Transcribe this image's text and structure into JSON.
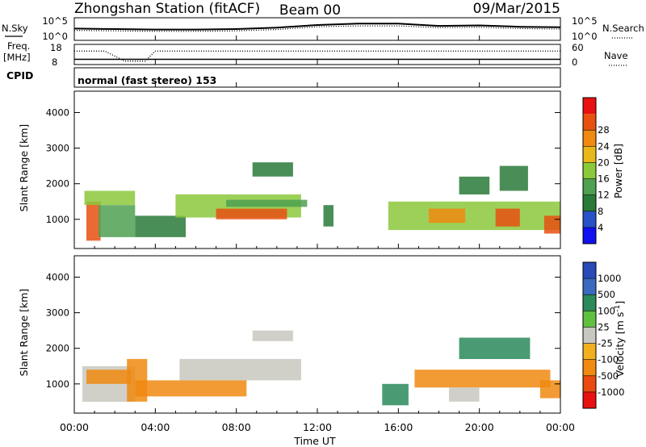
{
  "header": {
    "station": "Zhongshan Station (fitACF)",
    "beam": "Beam 00",
    "date": "09/Mar/2015"
  },
  "top_panels": {
    "nsky_label": "N.Sky",
    "nsearch_label": "N.Search",
    "left_hi": "10^5",
    "left_lo": "10^0",
    "right_hi": "10^5",
    "right_lo": "10^0",
    "freq_label": "Freq.",
    "freq_unit": "[MHz]",
    "freq_hi": "18",
    "freq_lo": "8",
    "nave_hi": "60",
    "nave_lo": "0",
    "nave_label": "Nave",
    "cpid_label": "CPID",
    "cpid_text": "normal (fast stereo) 153"
  },
  "x_axis": {
    "label": "Time UT",
    "ticks": [
      "00:00",
      "04:00",
      "08:00",
      "12:00",
      "16:00",
      "20:00",
      "00:00"
    ]
  },
  "colors": {
    "power": [
      "#1010f0",
      "#2a52c8",
      "#2a7a3a",
      "#4fa050",
      "#8cc83c",
      "#e8b818",
      "#f08a10",
      "#e85010",
      "#e81010"
    ],
    "velocity": [
      "#e81010",
      "#ea4a10",
      "#f08a10",
      "#f0b020",
      "#c8c8c0",
      "#60c040",
      "#2a8a5a",
      "#3a6ac0",
      "#2a4ab8"
    ]
  },
  "chart_data": [
    {
      "type": "line",
      "title": "N.Sky / N.Search",
      "x_hours": [
        0,
        2,
        4,
        6,
        8,
        10,
        12,
        14,
        16,
        18,
        20,
        22,
        24
      ],
      "series": [
        {
          "name": "N.Sky",
          "values_log10": [
            2.6,
            2.5,
            2.4,
            2.4,
            2.5,
            2.8,
            3.4,
            3.7,
            3.7,
            3.2,
            3.3,
            3.0,
            2.9
          ]
        },
        {
          "name": "N.Search",
          "values_log10": [
            2.2,
            2.1,
            2.0,
            2.0,
            2.1,
            2.4,
            3.0,
            3.2,
            3.2,
            2.8,
            2.9,
            2.6,
            2.5
          ]
        }
      ],
      "ylim_log10": [
        0,
        5
      ]
    },
    {
      "type": "line",
      "title": "Freq. / Nave",
      "x_hours": [
        0,
        1.5,
        2.5,
        3.5,
        4.0,
        24
      ],
      "freq_mhz": [
        10.6,
        10.6,
        10.6,
        10.6,
        10.6,
        10.6
      ],
      "nave": [
        40,
        40,
        10,
        10,
        40,
        40
      ],
      "freq_ylim": [
        8,
        18
      ],
      "nave_ylim": [
        0,
        60
      ]
    },
    {
      "type": "heatmap",
      "title": "Power [dB]",
      "xlabel": "Time UT",
      "ylabel": "Slant Range [km]",
      "xlim_hours": [
        0,
        24
      ],
      "ylim_km": [
        180,
        4600
      ],
      "yticks": [
        1000,
        2000,
        3000,
        4000
      ],
      "colorbar_label": "Power [dB]",
      "colorbar_ticks": [
        "4",
        "8",
        "12",
        "16",
        "20",
        "24",
        "28"
      ],
      "colorbar_range": [
        0,
        30
      ],
      "regions": [
        {
          "t0": 0.6,
          "t1": 1.3,
          "r0": 400,
          "r1": 1500,
          "v": 24
        },
        {
          "t0": 0.5,
          "t1": 3.0,
          "r0": 1400,
          "r1": 1800,
          "v": 16
        },
        {
          "t0": 1.2,
          "t1": 3.0,
          "r0": 500,
          "r1": 1400,
          "v": 12
        },
        {
          "t0": 3.0,
          "t1": 5.5,
          "r0": 500,
          "r1": 1100,
          "v": 8
        },
        {
          "t0": 5.0,
          "t1": 11.2,
          "r0": 1050,
          "r1": 1700,
          "v": 14
        },
        {
          "t0": 7.0,
          "t1": 10.5,
          "r0": 1000,
          "r1": 1300,
          "v": 26
        },
        {
          "t0": 7.5,
          "t1": 11.5,
          "r0": 1350,
          "r1": 1550,
          "v": 10
        },
        {
          "t0": 8.8,
          "t1": 10.8,
          "r0": 2200,
          "r1": 2600,
          "v": 8
        },
        {
          "t0": 12.3,
          "t1": 12.8,
          "r0": 800,
          "r1": 1400,
          "v": 8
        },
        {
          "t0": 15.5,
          "t1": 24.0,
          "r0": 700,
          "r1": 1500,
          "v": 14
        },
        {
          "t0": 17.5,
          "t1": 19.3,
          "r0": 900,
          "r1": 1300,
          "v": 22
        },
        {
          "t0": 20.8,
          "t1": 22.0,
          "r0": 800,
          "r1": 1300,
          "v": 26
        },
        {
          "t0": 19.0,
          "t1": 20.5,
          "r0": 1700,
          "r1": 2200,
          "v": 8
        },
        {
          "t0": 21.0,
          "t1": 22.4,
          "r0": 1800,
          "r1": 2500,
          "v": 8
        },
        {
          "t0": 23.2,
          "t1": 24.0,
          "r0": 600,
          "r1": 1100,
          "v": 24
        }
      ]
    },
    {
      "type": "heatmap",
      "title": "Velocity [m s-1]",
      "xlabel": "Time UT",
      "ylabel": "Slant Range [km]",
      "xlim_hours": [
        0,
        24
      ],
      "ylim_km": [
        180,
        4600
      ],
      "yticks": [
        1000,
        2000,
        3000,
        4000
      ],
      "colorbar_label": "Velocity [m s",
      "colorbar_label_sup": "-1",
      "colorbar_label_close": "]",
      "colorbar_ticks": [
        "-1000",
        "-500",
        "-100",
        "-25",
        "25",
        "100",
        "500",
        "1000"
      ],
      "colorbar_range": [
        -1250,
        1250
      ],
      "regions": [
        {
          "t0": 0.4,
          "t1": 3.0,
          "r0": 500,
          "r1": 1500,
          "v": 0
        },
        {
          "t0": 0.6,
          "t1": 2.8,
          "r0": 1000,
          "r1": 1400,
          "v": -300
        },
        {
          "t0": 2.6,
          "t1": 3.6,
          "r0": 500,
          "r1": 1700,
          "v": -200
        },
        {
          "t0": 5.2,
          "t1": 11.2,
          "r0": 1100,
          "r1": 1700,
          "v": 0
        },
        {
          "t0": 3.0,
          "t1": 8.5,
          "r0": 650,
          "r1": 1100,
          "v": -100
        },
        {
          "t0": 8.8,
          "t1": 10.8,
          "r0": 2200,
          "r1": 2500,
          "v": 0
        },
        {
          "t0": 15.2,
          "t1": 16.5,
          "r0": 400,
          "r1": 1000,
          "v": 300
        },
        {
          "t0": 16.8,
          "t1": 23.5,
          "r0": 900,
          "r1": 1400,
          "v": -300
        },
        {
          "t0": 18.5,
          "t1": 20.0,
          "r0": 500,
          "r1": 900,
          "v": 0
        },
        {
          "t0": 19.0,
          "t1": 22.5,
          "r0": 1700,
          "r1": 2300,
          "v": 200
        },
        {
          "t0": 23.0,
          "t1": 24.0,
          "r0": 600,
          "r1": 1100,
          "v": -200
        }
      ]
    }
  ]
}
